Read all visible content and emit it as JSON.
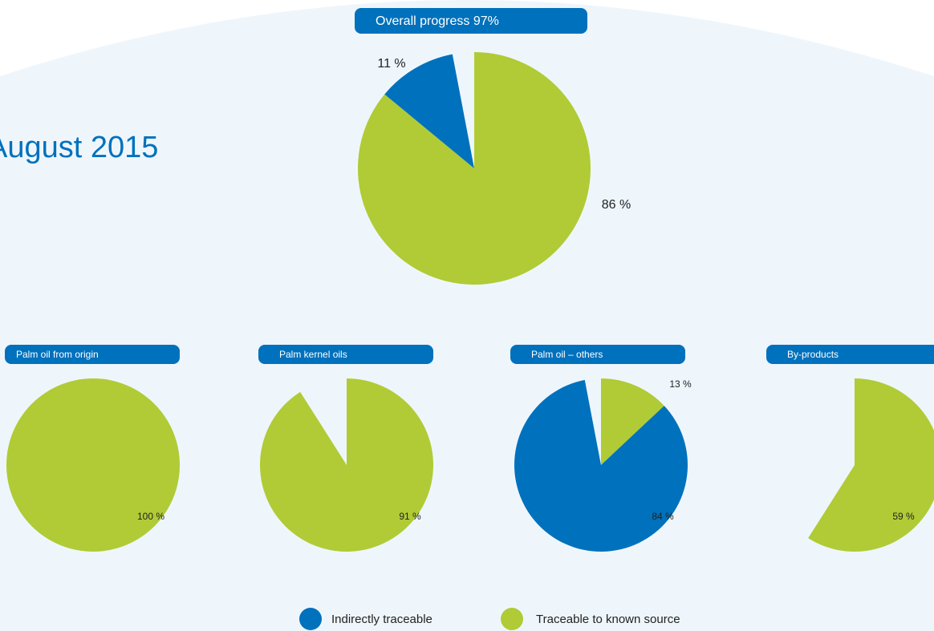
{
  "page_title": "August 2015",
  "legend": [
    {
      "name": "Indirectly traceable",
      "color": "#0071bc"
    },
    {
      "name": "Traceable to known source",
      "color": "#b0cb35"
    }
  ],
  "chart_data": [
    {
      "type": "pie",
      "title": "Overall progress 97%",
      "values": [
        11,
        86
      ],
      "value_labels": [
        "11 %",
        "86 %"
      ]
    },
    {
      "type": "pie",
      "title": "Palm oil from origin",
      "values": [
        null,
        100
      ],
      "value_labels": [
        null,
        "100 %"
      ]
    },
    {
      "type": "pie",
      "title": "Palm kernel oils",
      "values": [
        null,
        91
      ],
      "value_labels": [
        null,
        "91 %"
      ]
    },
    {
      "type": "pie",
      "title": "Palm oil – others",
      "values": [
        84,
        13
      ],
      "value_labels": [
        "84 %",
        "13 %"
      ]
    },
    {
      "type": "pie",
      "title": "By-products",
      "values": [
        null,
        59
      ],
      "value_labels": [
        null,
        "59 %"
      ]
    }
  ]
}
